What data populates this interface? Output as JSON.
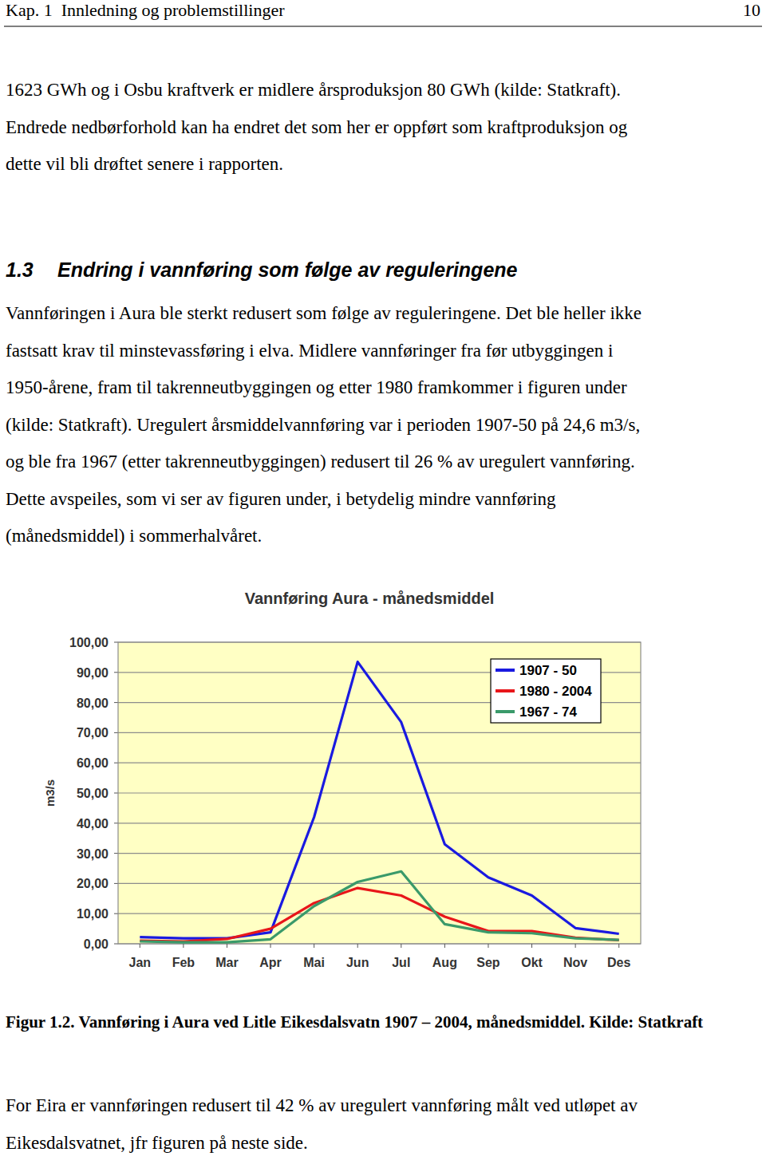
{
  "header": {
    "left": "Kap. 1  Innledning og problemstillinger",
    "right": "10"
  },
  "intro_lines": [
    "1623 GWh og i Osbu kraftverk er midlere årsproduksjon 80 GWh (kilde: Statkraft).",
    "Endrede nedbørforhold kan ha endret det som her er oppført som kraftproduksjon og",
    "dette vil bli drøftet senere i rapporten."
  ],
  "heading": {
    "number": "1.3",
    "text": "Endring i vannføring som følge av reguleringene"
  },
  "body_lines": [
    "Vannføringen i Aura ble sterkt redusert som følge av reguleringene. Det ble heller ikke",
    "fastsatt krav til minstevassføring i elva. Midlere vannføringer fra før utbyggingen i",
    "1950-årene, fram til takrenneutbyggingen og etter 1980 framkommer i figuren under",
    "(kilde: Statkraft). Uregulert årsmiddelvannføring var i perioden 1907-50 på 24,6 m3/s,",
    "og ble fra 1967 (etter takrenneutbyggingen) redusert til 26 % av uregulert vannføring.",
    "Dette avspeiles, som vi ser av figuren under, i betydelig mindre vannføring",
    "(månedsmiddel) i sommerhalvåret."
  ],
  "chart_data": {
    "type": "line",
    "title": "Vannføring Aura - månedsmiddel",
    "y_label": "m3/s",
    "categories": [
      "Jan",
      "Feb",
      "Mar",
      "Apr",
      "Mai",
      "Jun",
      "Jul",
      "Aug",
      "Sep",
      "Okt",
      "Nov",
      "Des"
    ],
    "series": [
      {
        "name": "1907 - 50",
        "color": "#1a1ae0",
        "values": [
          2.2,
          1.8,
          1.8,
          3.8,
          42,
          93.5,
          73.5,
          33,
          22,
          16,
          5.2,
          3.3
        ]
      },
      {
        "name": "1980 - 2004",
        "color": "#e8161a",
        "values": [
          1.0,
          0.8,
          1.6,
          5,
          13.5,
          18.5,
          16,
          9,
          4.2,
          4.2,
          2.0,
          1.2
        ]
      },
      {
        "name": "1967 - 74",
        "color": "#3a9a6a",
        "values": [
          0.8,
          0.5,
          0.5,
          1.5,
          12.5,
          20.5,
          24,
          6.5,
          3.8,
          3.5,
          1.8,
          1.3
        ]
      }
    ],
    "ylim": [
      0,
      100
    ],
    "yticks": [
      {
        "value": 0,
        "label": "0,00"
      },
      {
        "value": 10,
        "label": "10,00"
      },
      {
        "value": 20,
        "label": "20,00"
      },
      {
        "value": 30,
        "label": "30,00"
      },
      {
        "value": 40,
        "label": "40,00"
      },
      {
        "value": 50,
        "label": "50,00"
      },
      {
        "value": 60,
        "label": "60,00"
      },
      {
        "value": 70,
        "label": "70,00"
      },
      {
        "value": 80,
        "label": "80,00"
      },
      {
        "value": 90,
        "label": "90,00"
      },
      {
        "value": 100,
        "label": "100,00"
      }
    ],
    "grid": true,
    "legend": "top-right"
  },
  "caption": "Figur 1.2. Vannføring i Aura ved Litle Eikesdalsvatn 1907 – 2004, månedsmiddel. Kilde: Statkraft",
  "footer_lines": [
    "For Eira er vannføringen redusert til 42 % av uregulert vannføring målt ved utløpet av",
    "Eikesdalsvatnet, jfr figuren på neste side."
  ]
}
